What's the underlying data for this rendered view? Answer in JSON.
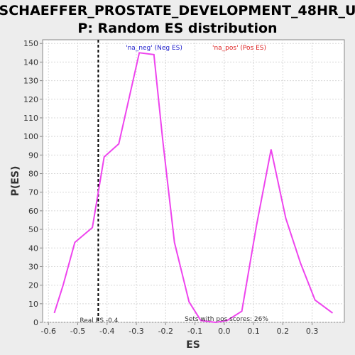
{
  "chart_data": {
    "type": "line",
    "title_lines": [
      "SCHAEFFER_PROSTATE_DEVELOPMENT_48HR_U",
      "P: Random ES distribution"
    ],
    "xlabel": "ES",
    "ylabel": "P(ES)",
    "xlim": [
      -0.62,
      0.41
    ],
    "ylim": [
      0,
      152
    ],
    "xticks": [
      -0.6,
      -0.5,
      -0.4,
      -0.3,
      -0.2,
      -0.1,
      0.0,
      0.1,
      0.2,
      0.3
    ],
    "xtick_labels": [
      "-0.6",
      "-0.5",
      "-0.4",
      "-0.3",
      "-0.2",
      "-0.1",
      "0.0",
      "0.1",
      "0.2",
      "0.3"
    ],
    "yticks": [
      0,
      10,
      20,
      30,
      40,
      50,
      60,
      70,
      80,
      90,
      100,
      110,
      120,
      130,
      140,
      150
    ],
    "ytick_labels": [
      "0",
      "10",
      "20",
      "30",
      "40",
      "50",
      "60",
      "70",
      "80",
      "90",
      "100",
      "110",
      "120",
      "130",
      "140",
      "150"
    ],
    "grid": true,
    "series": [
      {
        "color": "#ee44ee",
        "x": [
          -0.58,
          -0.55,
          -0.51,
          -0.45,
          -0.41,
          -0.36,
          -0.29,
          -0.24,
          -0.21,
          -0.17,
          -0.12,
          -0.08,
          -0.03,
          0.01,
          0.06,
          0.11,
          0.16,
          0.21,
          0.26,
          0.31,
          0.37
        ],
        "y": [
          5,
          20,
          43,
          51,
          89,
          96,
          145,
          144,
          98,
          43,
          11,
          1,
          0,
          1,
          6,
          52,
          93,
          56,
          32,
          12,
          5
        ]
      }
    ],
    "real_es": {
      "x": -0.43,
      "label": "Real ES -0.4"
    },
    "legend": [
      {
        "label": "'na_neg' (Neg ES)",
        "color": "#2222cc"
      },
      {
        "label": "'na_pos' (Pos ES)",
        "color": "#dd2222"
      }
    ],
    "annotation": "Sets with pos scores: 26%"
  }
}
